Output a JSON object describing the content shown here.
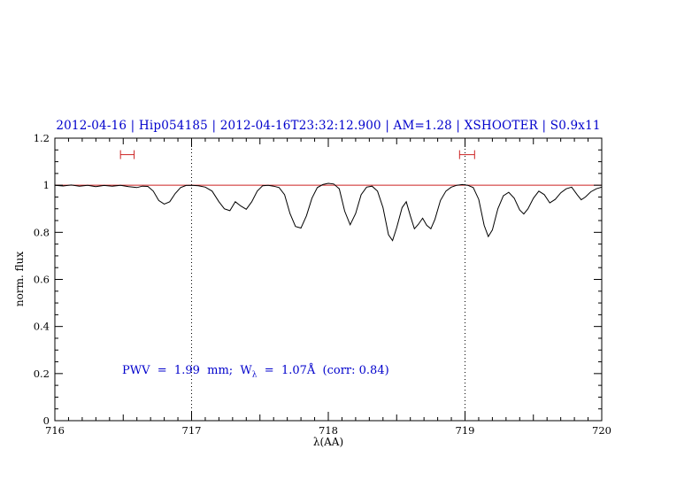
{
  "chart_data": {
    "type": "line",
    "title": "2012-04-16 | Hip054185 | 2012-04-16T23:32:12.900 | AM=1.28 | XSHOOTER | S0.9x11",
    "title_color": "#0000cc",
    "xlabel": "λ(AA)",
    "ylabel": "norm. flux",
    "xlim": [
      716,
      720
    ],
    "ylim": [
      0,
      1.2
    ],
    "x_minor_step": 0.1,
    "y_minor_step": 0.05,
    "x_ticks": [
      {
        "v": 716,
        "label": "716"
      },
      {
        "v": 717,
        "label": "717"
      },
      {
        "v": 718,
        "label": "718"
      },
      {
        "v": 719,
        "label": "719"
      },
      {
        "v": 720,
        "label": "720"
      }
    ],
    "y_ticks": [
      {
        "v": 0,
        "label": "0"
      },
      {
        "v": 0.2,
        "label": "0.2"
      },
      {
        "v": 0.4,
        "label": "0.4"
      },
      {
        "v": 0.6,
        "label": "0.6"
      },
      {
        "v": 0.8,
        "label": "0.8"
      },
      {
        "v": 1,
        "label": "1"
      },
      {
        "v": 1.2,
        "label": "1.2"
      }
    ],
    "grid": "off",
    "dotted_vlines": [
      717,
      719
    ],
    "reference_hline": {
      "y": 1.0,
      "color": "#cc2222"
    },
    "range_markers": [
      {
        "x1": 716.48,
        "x2": 716.58,
        "y": 1.13
      },
      {
        "x1": 718.96,
        "x2": 719.07,
        "y": 1.13
      }
    ],
    "marker_color": "#cc2222",
    "line_color": "#000000",
    "annotation": {
      "prefix": "PWV  =  1.99  mm;  W",
      "sub": "λ",
      "suffix": "  =  1.07Å  (corr: 0.84)",
      "color": "#0000cc"
    },
    "series_points": [
      [
        716.0,
        1.0
      ],
      [
        716.06,
        0.997
      ],
      [
        716.12,
        1.001
      ],
      [
        716.18,
        0.996
      ],
      [
        716.24,
        1.0
      ],
      [
        716.3,
        0.994
      ],
      [
        716.36,
        0.999
      ],
      [
        716.42,
        0.996
      ],
      [
        716.48,
        1.0
      ],
      [
        716.54,
        0.994
      ],
      [
        716.6,
        0.99
      ],
      [
        716.64,
        0.996
      ],
      [
        716.68,
        0.995
      ],
      [
        716.72,
        0.975
      ],
      [
        716.76,
        0.935
      ],
      [
        716.8,
        0.92
      ],
      [
        716.84,
        0.93
      ],
      [
        716.88,
        0.965
      ],
      [
        716.92,
        0.99
      ],
      [
        716.96,
        0.999
      ],
      [
        717.0,
        1.0
      ],
      [
        717.05,
        0.998
      ],
      [
        717.1,
        0.992
      ],
      [
        717.15,
        0.975
      ],
      [
        717.2,
        0.93
      ],
      [
        717.24,
        0.9
      ],
      [
        717.28,
        0.892
      ],
      [
        717.32,
        0.93
      ],
      [
        717.36,
        0.912
      ],
      [
        717.4,
        0.898
      ],
      [
        717.44,
        0.93
      ],
      [
        717.48,
        0.975
      ],
      [
        717.52,
        0.998
      ],
      [
        717.56,
        1.0
      ],
      [
        717.6,
        0.996
      ],
      [
        717.64,
        0.99
      ],
      [
        717.68,
        0.96
      ],
      [
        717.72,
        0.88
      ],
      [
        717.76,
        0.825
      ],
      [
        717.8,
        0.818
      ],
      [
        717.84,
        0.87
      ],
      [
        717.88,
        0.945
      ],
      [
        717.92,
        0.99
      ],
      [
        717.96,
        1.003
      ],
      [
        718.0,
        1.008
      ],
      [
        718.04,
        1.005
      ],
      [
        718.08,
        0.985
      ],
      [
        718.12,
        0.89
      ],
      [
        718.16,
        0.832
      ],
      [
        718.2,
        0.88
      ],
      [
        718.24,
        0.96
      ],
      [
        718.28,
        0.992
      ],
      [
        718.32,
        0.996
      ],
      [
        718.36,
        0.975
      ],
      [
        718.4,
        0.905
      ],
      [
        718.44,
        0.79
      ],
      [
        718.47,
        0.765
      ],
      [
        718.5,
        0.82
      ],
      [
        718.54,
        0.905
      ],
      [
        718.57,
        0.93
      ],
      [
        718.6,
        0.87
      ],
      [
        718.63,
        0.815
      ],
      [
        718.66,
        0.835
      ],
      [
        718.69,
        0.86
      ],
      [
        718.72,
        0.83
      ],
      [
        718.75,
        0.815
      ],
      [
        718.78,
        0.855
      ],
      [
        718.82,
        0.935
      ],
      [
        718.86,
        0.975
      ],
      [
        718.9,
        0.992
      ],
      [
        718.94,
        1.0
      ],
      [
        718.98,
        1.003
      ],
      [
        719.02,
        1.0
      ],
      [
        719.06,
        0.99
      ],
      [
        719.1,
        0.94
      ],
      [
        719.14,
        0.83
      ],
      [
        719.17,
        0.782
      ],
      [
        719.2,
        0.81
      ],
      [
        719.24,
        0.9
      ],
      [
        719.28,
        0.955
      ],
      [
        719.32,
        0.97
      ],
      [
        719.36,
        0.945
      ],
      [
        719.4,
        0.895
      ],
      [
        719.43,
        0.878
      ],
      [
        719.46,
        0.9
      ],
      [
        719.5,
        0.945
      ],
      [
        719.54,
        0.975
      ],
      [
        719.58,
        0.96
      ],
      [
        719.62,
        0.925
      ],
      [
        719.66,
        0.94
      ],
      [
        719.7,
        0.968
      ],
      [
        719.74,
        0.985
      ],
      [
        719.78,
        0.992
      ],
      [
        719.82,
        0.96
      ],
      [
        719.85,
        0.938
      ],
      [
        719.88,
        0.95
      ],
      [
        719.92,
        0.972
      ],
      [
        719.96,
        0.985
      ],
      [
        720.0,
        0.992
      ]
    ]
  }
}
